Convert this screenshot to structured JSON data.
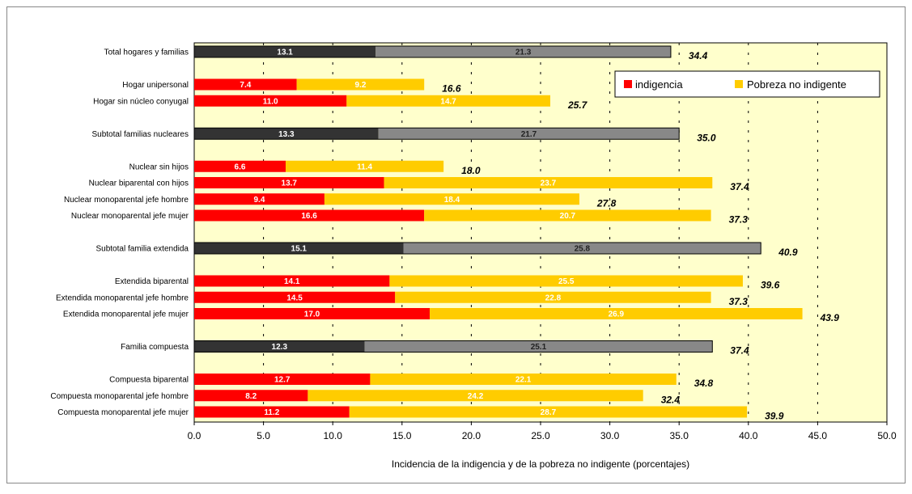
{
  "chart_data": {
    "type": "bar",
    "orientation": "horizontal",
    "stacked": true,
    "xlabel": "Incidencia de la indigencia y de la pobreza no indigente (porcentajes)",
    "xlim": [
      0,
      50
    ],
    "xticks": [
      "0.0",
      "5.0",
      "10.0",
      "15.0",
      "20.0",
      "25.0",
      "30.0",
      "35.0",
      "40.0",
      "45.0",
      "50.0"
    ],
    "grid": "vertical dashed",
    "legend_position": "top-right",
    "colors": {
      "indigencia": "#ff0000",
      "pobreza_no_indigente": "#ffcc00",
      "subtotal_indigencia": "#333333",
      "subtotal_pobreza": "#888888",
      "plot_background": "#ffffcc"
    },
    "series": [
      {
        "name": "indigencia",
        "values": [
          13.1,
          7.4,
          11.0,
          13.3,
          6.6,
          13.7,
          9.4,
          16.6,
          15.1,
          14.1,
          14.5,
          17.0,
          12.3,
          12.7,
          8.2,
          11.2
        ]
      },
      {
        "name": "Pobreza no indigente",
        "values": [
          21.3,
          9.2,
          14.7,
          21.7,
          11.4,
          23.7,
          18.4,
          20.7,
          25.8,
          25.5,
          22.8,
          26.9,
          25.1,
          22.1,
          24.2,
          28.7
        ]
      }
    ],
    "categories": [
      {
        "label": "Total hogares y familias",
        "slot": 0,
        "subtotal": true,
        "ind": 13.1,
        "pob": 21.3,
        "ind_label": "13.1",
        "pob_label": "21.3",
        "total": 34.4,
        "total_label": "34.4"
      },
      {
        "label": "Hogar unipersonal",
        "slot": 2,
        "subtotal": false,
        "ind": 7.4,
        "pob": 9.2,
        "ind_label": "7.4",
        "pob_label": "9.2",
        "total": 16.6,
        "total_label": "16.6"
      },
      {
        "label": "Hogar sin núcleo conyugal",
        "slot": 3,
        "subtotal": false,
        "ind": 11.0,
        "pob": 14.7,
        "ind_label": "11.0",
        "pob_label": "14.7",
        "total": 25.7,
        "total_label": "25.7"
      },
      {
        "label": "Subtotal familias nucleares",
        "slot": 5,
        "subtotal": true,
        "ind": 13.3,
        "pob": 21.7,
        "ind_label": "13.3",
        "pob_label": "21.7",
        "total": 35.0,
        "total_label": "35.0"
      },
      {
        "label": "Nuclear sin hijos",
        "slot": 7,
        "subtotal": false,
        "ind": 6.6,
        "pob": 11.4,
        "ind_label": "6.6",
        "pob_label": "11.4",
        "total": 18.0,
        "total_label": "18.0"
      },
      {
        "label": "Nuclear biparental con hijos",
        "slot": 8,
        "subtotal": false,
        "ind": 13.7,
        "pob": 23.7,
        "ind_label": "13.7",
        "pob_label": "23.7",
        "total": 37.4,
        "total_label": "37.4"
      },
      {
        "label": "Nuclear monoparental jefe hombre",
        "slot": 9,
        "subtotal": false,
        "ind": 9.4,
        "pob": 18.4,
        "ind_label": "9.4",
        "pob_label": "18.4",
        "total": 27.8,
        "total_label": "27.8"
      },
      {
        "label": "Nuclear monoparental jefe mujer",
        "slot": 10,
        "subtotal": false,
        "ind": 16.6,
        "pob": 20.7,
        "ind_label": "16.6",
        "pob_label": "20.7",
        "total": 37.3,
        "total_label": "37.3"
      },
      {
        "label": "Subtotal familia extendida",
        "slot": 12,
        "subtotal": true,
        "ind": 15.1,
        "pob": 25.8,
        "ind_label": "15.1",
        "pob_label": "25.8",
        "total": 40.9,
        "total_label": "40.9"
      },
      {
        "label": "Extendida biparental",
        "slot": 14,
        "subtotal": false,
        "ind": 14.1,
        "pob": 25.5,
        "ind_label": "14.1",
        "pob_label": "25.5",
        "total": 39.6,
        "total_label": "39.6"
      },
      {
        "label": "Extendida monoparental jefe hombre",
        "slot": 15,
        "subtotal": false,
        "ind": 14.5,
        "pob": 22.8,
        "ind_label": "14.5",
        "pob_label": "22.8",
        "total": 37.3,
        "total_label": "37.3"
      },
      {
        "label": "Extendida monoparental jefe mujer",
        "slot": 16,
        "subtotal": false,
        "ind": 17.0,
        "pob": 26.9,
        "ind_label": "17.0",
        "pob_label": "26.9",
        "total": 43.9,
        "total_label": "43.9"
      },
      {
        "label": "Familia compuesta",
        "slot": 18,
        "subtotal": true,
        "ind": 12.3,
        "pob": 25.1,
        "ind_label": "12.3",
        "pob_label": "25.1",
        "total": 37.4,
        "total_label": "37.4"
      },
      {
        "label": "Compuesta biparental",
        "slot": 20,
        "subtotal": false,
        "ind": 12.7,
        "pob": 22.1,
        "ind_label": "12.7",
        "pob_label": "22.1",
        "total": 34.8,
        "total_label": "34.8"
      },
      {
        "label": "Compuesta monoparental jefe hombre",
        "slot": 21,
        "subtotal": false,
        "ind": 8.2,
        "pob": 24.2,
        "ind_label": "8.2",
        "pob_label": "24.2",
        "total": 32.4,
        "total_label": "32.4"
      },
      {
        "label": "Compuesta monoparental jefe mujer",
        "slot": 22,
        "subtotal": false,
        "ind": 11.2,
        "pob": 28.7,
        "ind_label": "11.2",
        "pob_label": "28.7",
        "total": 39.9,
        "total_label": "39.9"
      }
    ],
    "legend": [
      {
        "label": "indigencia",
        "color": "#ff0000"
      },
      {
        "label": "Pobreza no indigente",
        "color": "#ffcc00"
      }
    ]
  }
}
